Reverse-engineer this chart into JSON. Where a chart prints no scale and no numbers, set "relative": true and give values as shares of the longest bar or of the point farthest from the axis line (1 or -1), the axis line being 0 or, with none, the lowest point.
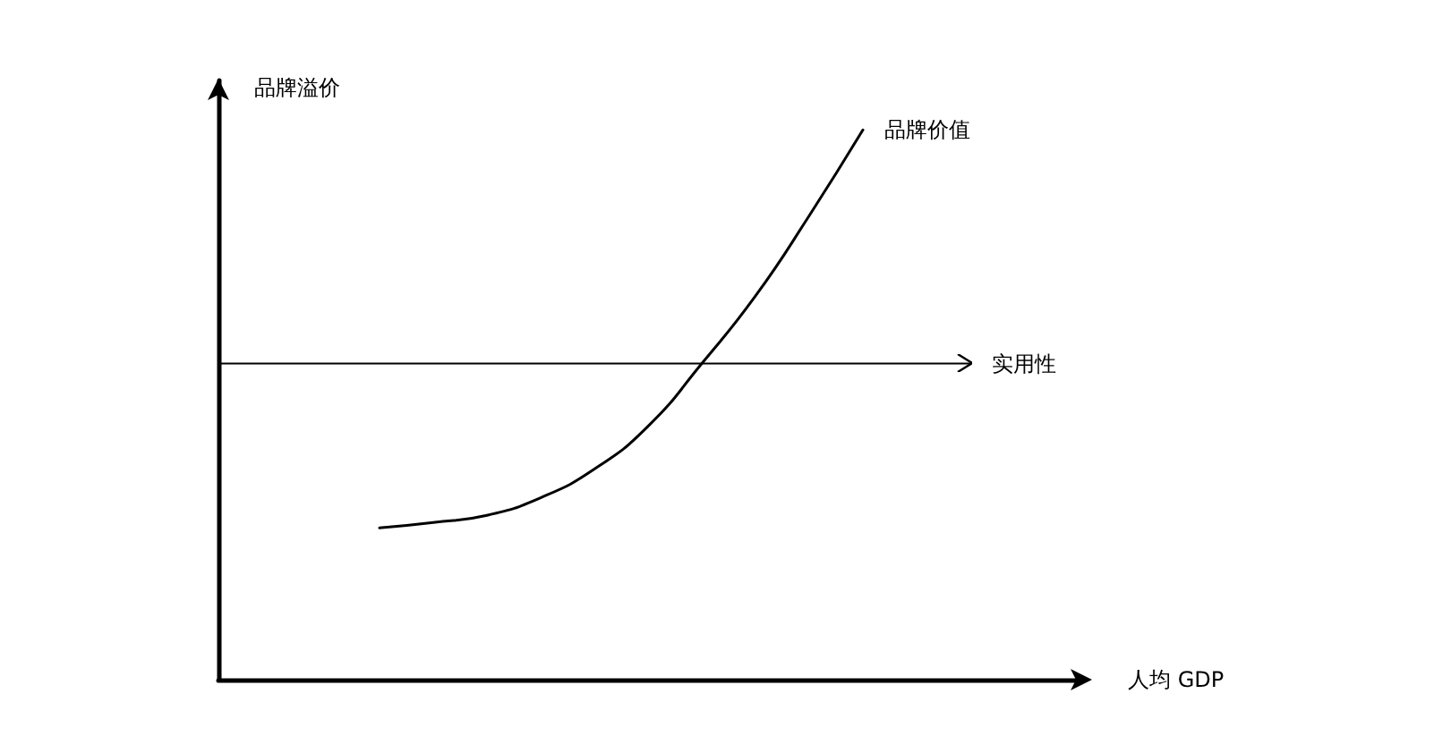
{
  "chart_data": {
    "type": "line",
    "relative": true,
    "xlabel": "人均 GDP",
    "ylabel": "品牌溢价",
    "categories": [
      null,
      null,
      null,
      null,
      null,
      null,
      null,
      null,
      null,
      null,
      null,
      null,
      null,
      null,
      null,
      null,
      null
    ],
    "series": [
      {
        "name": "品牌价值",
        "color": "#000000",
        "values": [
          null,
          null,
          null,
          0.276,
          0.286,
          0.299,
          0.331,
          0.383,
          0.461,
          0.575,
          0.698,
          0.844,
          1,
          null,
          null,
          null,
          null
        ]
      },
      {
        "name": "实用性",
        "color": "#000000",
        "values": [
          0.575,
          0.575,
          0.575,
          0.575,
          0.575,
          0.575,
          0.575,
          0.575,
          0.575,
          0.575,
          0.575,
          0.575,
          0.575,
          0.575,
          0.575,
          null,
          null
        ]
      }
    ],
    "legend": false,
    "grid": false,
    "marker": "none",
    "line_style": "solid"
  }
}
